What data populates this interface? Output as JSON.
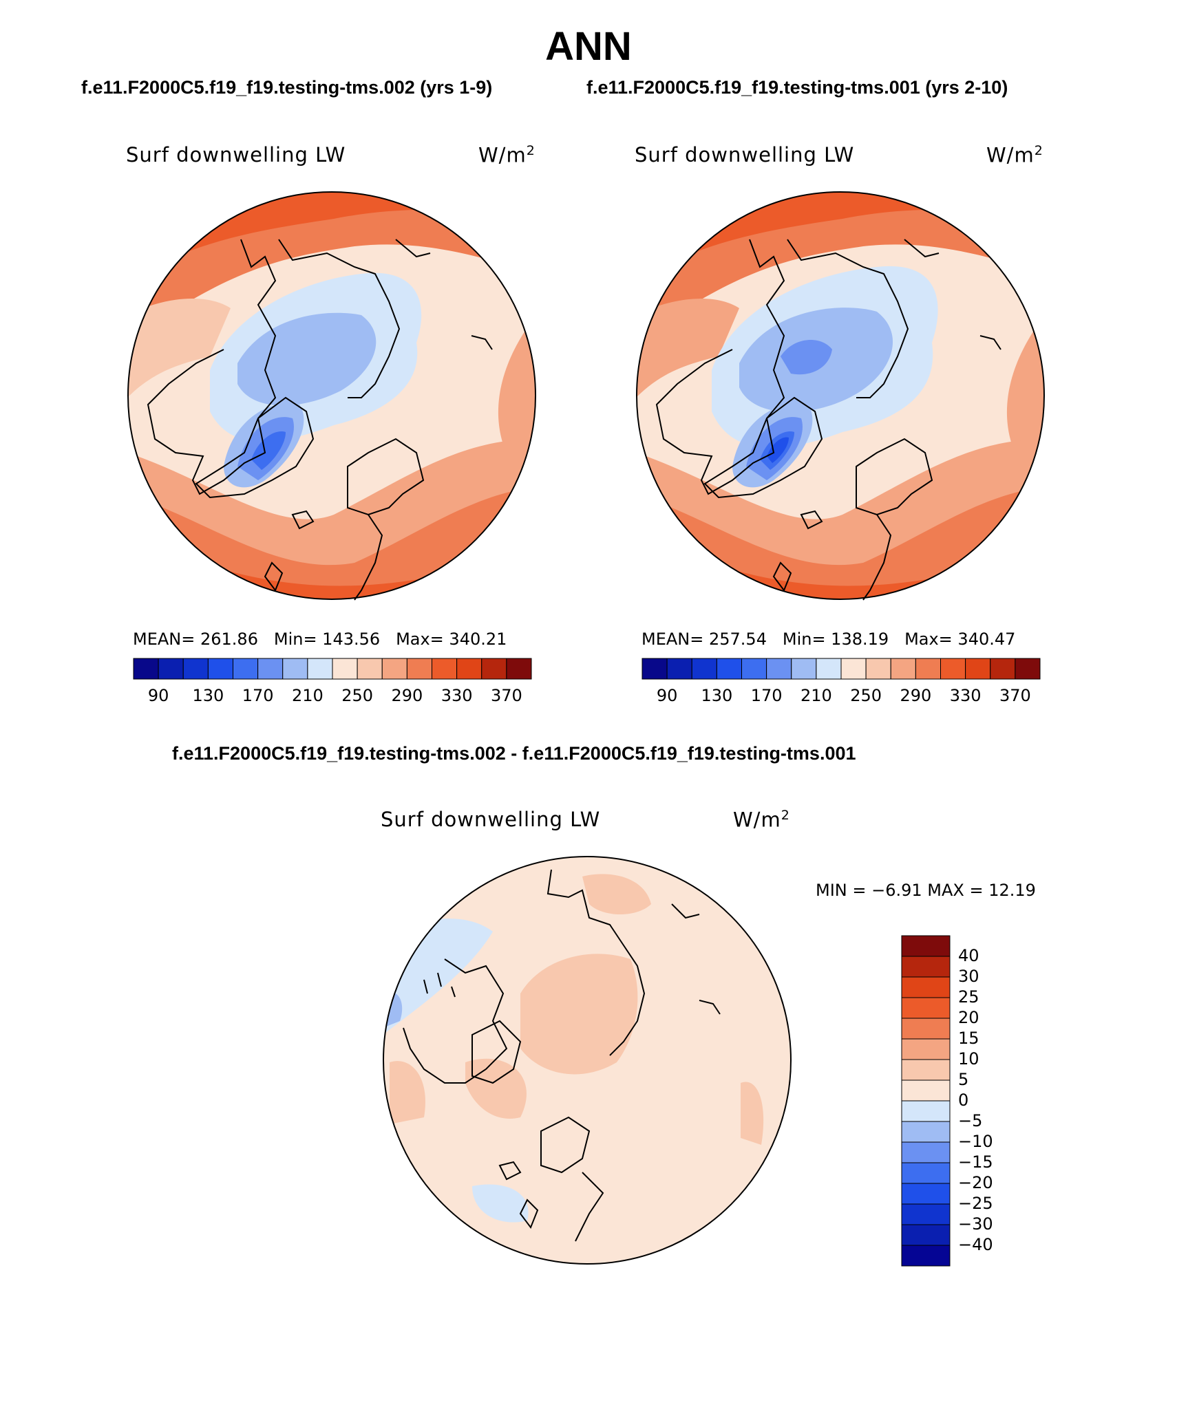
{
  "title": "ANN",
  "subtitle_left": "f.e11.F2000C5.f19_f19.testing-tms.002 (yrs 1-9)",
  "subtitle_right": "f.e11.F2000C5.f19_f19.testing-tms.001 (yrs 2-10)",
  "diff_title": "f.e11.F2000C5.f19_f19.testing-tms.002 - f.e11.F2000C5.f19_f19.testing-tms.001",
  "variable": "Surf downwelling LW",
  "units": "W/m",
  "units_exp": "2",
  "panels": [
    {
      "mean": "MEAN= 261.86",
      "min": "Min= 143.56",
      "max": "Max= 340.21"
    },
    {
      "mean": "MEAN= 257.54",
      "min": "Min= 138.19",
      "max": "Max= 340.47"
    }
  ],
  "abs_colors": [
    "#08088a",
    "#0a1fb0",
    "#1034cf",
    "#1f50ea",
    "#3d6ef0",
    "#6b91f2",
    "#9fbcf3",
    "#d4e6fa",
    "#fbe5d6",
    "#f8c8ae",
    "#f4a582",
    "#ef7d52",
    "#ec5b2a",
    "#e04517",
    "#b5260d",
    "#7e0b0b"
  ],
  "abs_ticks": [
    "90",
    "130",
    "170",
    "210",
    "250",
    "290",
    "330",
    "370"
  ],
  "diff_range": "MIN =  −6.91 MAX =   12.19",
  "diff_colors": [
    "#050594",
    "#0a1fb0",
    "#1034cf",
    "#1f50ea",
    "#3d6ef0",
    "#6b91f2",
    "#9fbcf3",
    "#d4e6fa",
    "#fbe5d6",
    "#f8c8ae",
    "#f4a582",
    "#ef7d52",
    "#ec5b2a",
    "#e04517",
    "#b5260d",
    "#7e0b0b"
  ],
  "diff_ticks": [
    "40",
    "30",
    "25",
    "20",
    "15",
    "10",
    "5",
    "0",
    "−5",
    "−10",
    "−15",
    "−20",
    "−25",
    "−30",
    "−40"
  ]
}
